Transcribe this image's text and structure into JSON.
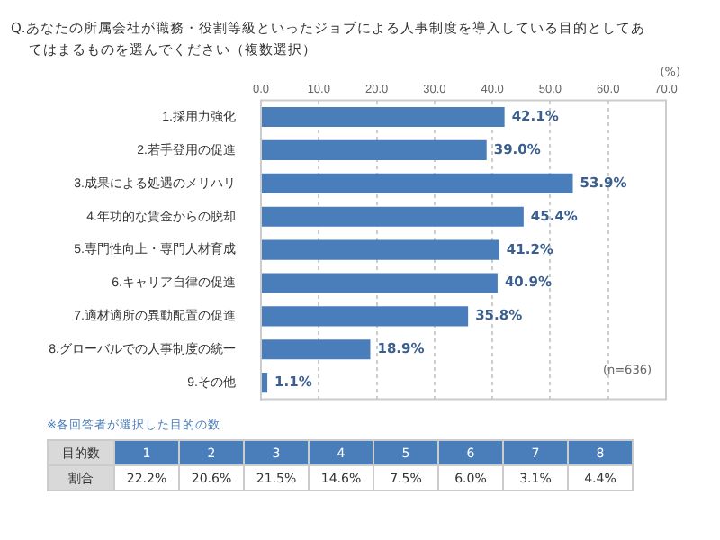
{
  "chart_data": {
    "type": "bar",
    "orientation": "horizontal",
    "title": "Q.あなたの所属会社が職務・役割等級といったジョブによる人事制度を導入している目的としてあてはまるものを選んでください（複数選択）",
    "xlabel": "(%)",
    "categories": [
      "1.採用力強化",
      "2.若手登用の促進",
      "3.成果による処遇のメリハリ",
      "4.年功的な賃金からの脱却",
      "5.専門性向上・専門人材育成",
      "6.キャリア自律の促進",
      "7.適材適所の異動配置の促進",
      "8.グローバルでの人事制度の統一",
      "9.その他"
    ],
    "values": [
      42.1,
      39.0,
      53.9,
      45.4,
      41.2,
      40.9,
      35.8,
      18.9,
      1.1
    ],
    "value_labels": [
      "42.1%",
      "39.0%",
      "53.9%",
      "45.4%",
      "41.2%",
      "40.9%",
      "35.8%",
      "18.9%",
      "1.1%"
    ],
    "color": "#4a7ebb",
    "xlim": [
      0,
      70
    ],
    "xticks": [
      {
        "value": 0,
        "label": "0.0"
      },
      {
        "value": 10,
        "label": "10.0"
      },
      {
        "value": 20,
        "label": "20.0"
      },
      {
        "value": 30,
        "label": "30.0"
      },
      {
        "value": 40,
        "label": "40.0"
      },
      {
        "value": 50,
        "label": "50.0"
      },
      {
        "value": 60,
        "label": "60.0"
      },
      {
        "value": 70,
        "label": "70.0"
      }
    ],
    "grid": "x",
    "annotations": [
      "(n=636)",
      "※各回答者が選択した目的の数",
      "目的数",
      "1",
      "2",
      "3",
      "4",
      "5",
      "6",
      "7",
      "8",
      "割合",
      "22.2%",
      "20.6%",
      "21.5%",
      "14.6%",
      "7.5%",
      "6.0%",
      "3.1%",
      "4.4%"
    ]
  }
}
